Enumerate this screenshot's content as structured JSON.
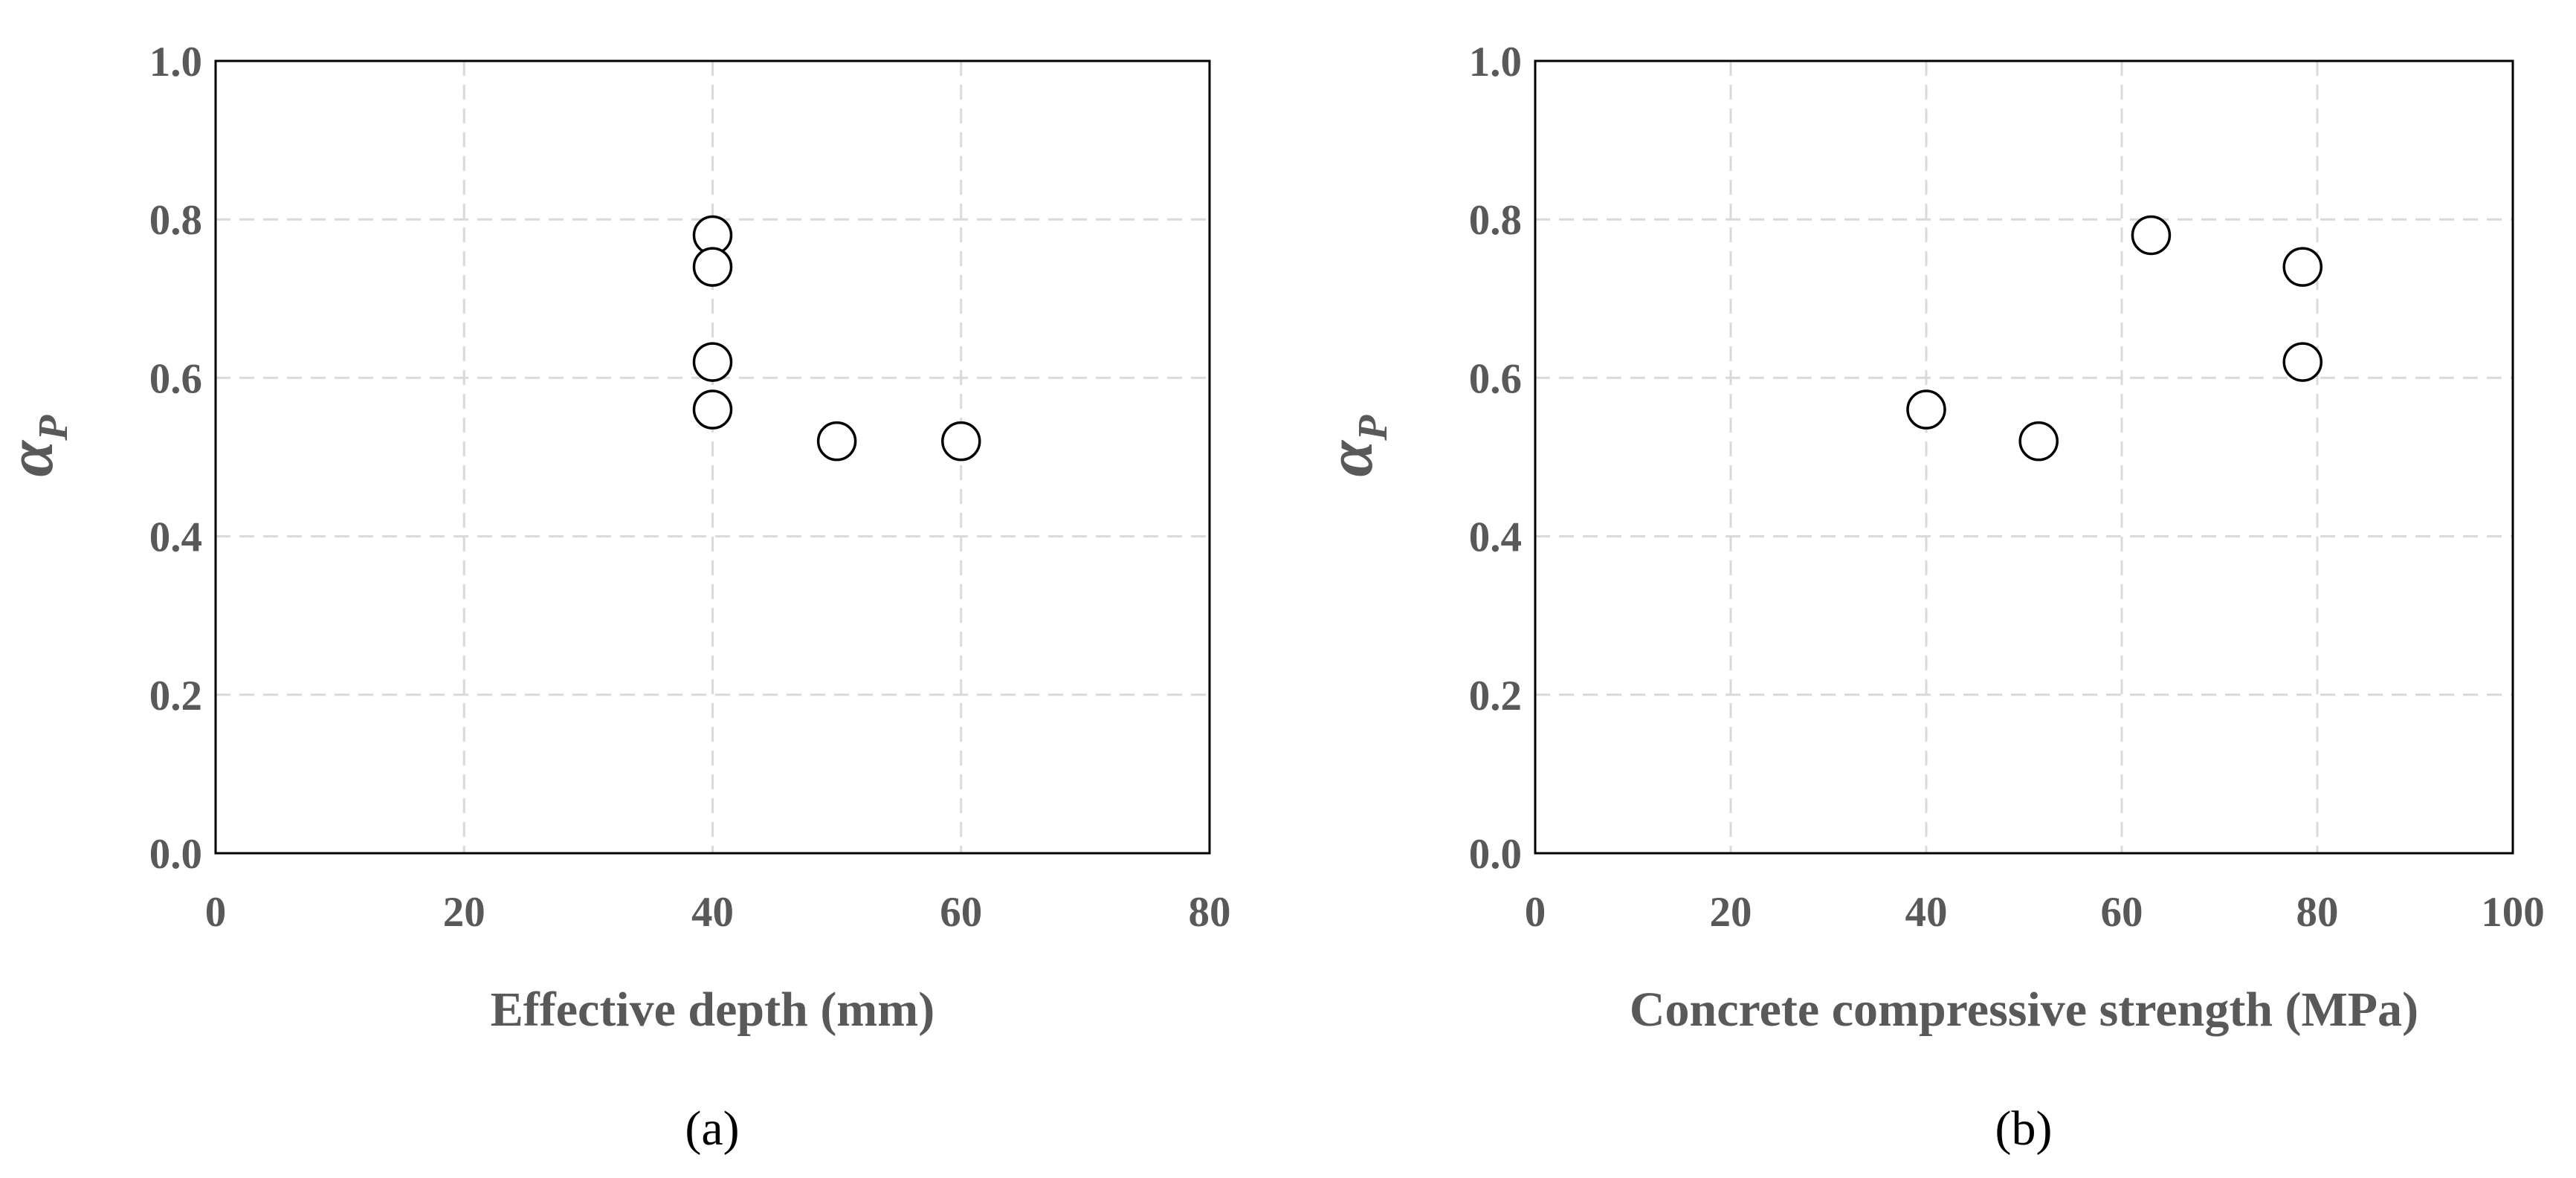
{
  "chart_data": [
    {
      "type": "scatter",
      "panel_label": "(a)",
      "xlabel": "Effective depth (mm)",
      "ylabel_main": "α",
      "ylabel_sub": "P",
      "xlim": [
        0,
        80
      ],
      "ylim": [
        0.0,
        1.0
      ],
      "x_ticks": [
        "0",
        "20",
        "40",
        "60",
        "80"
      ],
      "y_ticks": [
        "0.0",
        "0.2",
        "0.4",
        "0.6",
        "0.8",
        "1.0"
      ],
      "grid": true,
      "marker": "open-circle",
      "points": [
        {
          "x": 40,
          "y": 0.78
        },
        {
          "x": 40,
          "y": 0.74
        },
        {
          "x": 40,
          "y": 0.62
        },
        {
          "x": 40,
          "y": 0.56
        },
        {
          "x": 50,
          "y": 0.52
        },
        {
          "x": 60,
          "y": 0.52
        }
      ]
    },
    {
      "type": "scatter",
      "panel_label": "(b)",
      "xlabel": "Concrete compressive strength (MPa)",
      "ylabel_main": "α",
      "ylabel_sub": "P",
      "xlim": [
        0,
        100
      ],
      "ylim": [
        0.0,
        1.0
      ],
      "x_ticks": [
        "0",
        "20",
        "40",
        "60",
        "80",
        "100"
      ],
      "y_ticks": [
        "0.0",
        "0.2",
        "0.4",
        "0.6",
        "0.8",
        "1.0"
      ],
      "grid": true,
      "marker": "open-circle",
      "points": [
        {
          "x": 40,
          "y": 0.56
        },
        {
          "x": 51.5,
          "y": 0.52
        },
        {
          "x": 63,
          "y": 0.78
        },
        {
          "x": 78.5,
          "y": 0.74
        },
        {
          "x": 78.5,
          "y": 0.62
        }
      ]
    }
  ]
}
